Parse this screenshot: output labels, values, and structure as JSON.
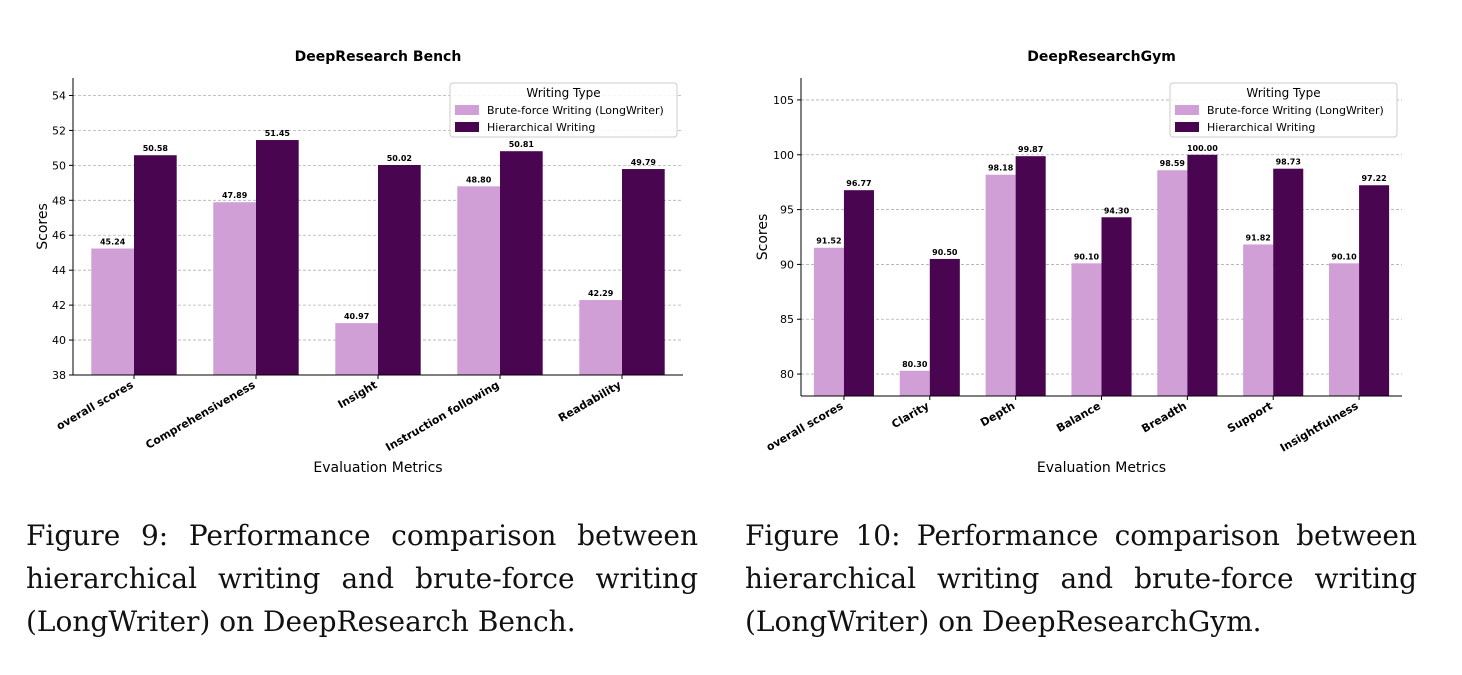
{
  "chart_data": [
    {
      "type": "bar",
      "title": "DeepResearch Bench",
      "xlabel": "Evaluation Metrics",
      "ylabel": "Scores",
      "ylim": [
        38,
        55
      ],
      "yticks": [
        38,
        40,
        42,
        44,
        46,
        48,
        50,
        52,
        54
      ],
      "grid": "y-dashed",
      "legend": {
        "title": "Writing Type",
        "position": "top-right"
      },
      "categories": [
        "overall scores",
        "Comprehensiveness",
        "Insight",
        "Instruction following",
        "Readability"
      ],
      "series": [
        {
          "name": "Brute-force Writing (LongWriter)",
          "color": "#cf9fd6",
          "values": [
            45.24,
            47.89,
            40.97,
            48.8,
            42.29
          ],
          "labels": [
            "45.24",
            "47.89",
            "40.97",
            "48.80",
            "42.29"
          ]
        },
        {
          "name": "Hierarchical Writing",
          "color": "#4a0550",
          "values": [
            50.58,
            51.45,
            50.02,
            50.81,
            49.79
          ],
          "labels": [
            "50.58",
            "51.45",
            "50.02",
            "50.81",
            "49.79"
          ]
        }
      ]
    },
    {
      "type": "bar",
      "title": "DeepResearchGym",
      "xlabel": "Evaluation Metrics",
      "ylabel": "Scores",
      "ylim": [
        78,
        107
      ],
      "yticks": [
        80,
        85,
        90,
        95,
        100,
        105
      ],
      "grid": "y-dashed",
      "legend": {
        "title": "Writing Type",
        "position": "top-right"
      },
      "categories": [
        "overall scores",
        "Clarity",
        "Depth",
        "Balance",
        "Breadth",
        "Support",
        "Insightfulness"
      ],
      "series": [
        {
          "name": "Brute-force Writing (LongWriter)",
          "color": "#cf9fd6",
          "values": [
            91.52,
            80.3,
            98.18,
            90.1,
            98.59,
            91.82,
            90.1
          ],
          "labels": [
            "91.52",
            "80.30",
            "98.18",
            "90.10",
            "98.59",
            "91.82",
            "90.10"
          ]
        },
        {
          "name": "Hierarchical Writing",
          "color": "#4a0550",
          "values": [
            96.77,
            90.5,
            99.87,
            94.3,
            100.0,
            98.73,
            97.22
          ],
          "labels": [
            "96.77",
            "90.50",
            "99.87",
            "94.30",
            "100.00",
            "98.73",
            "97.22"
          ]
        }
      ]
    }
  ],
  "captions": {
    "left": "Figure 9: Performance comparison between hierar­chical writing and brute-force writing (LongWriter) on DeepResearch Bench.",
    "right": "Figure 10: Performance comparison between hi­erarchical writing and brute-force writing (Long­Writer) on DeepResearchGym."
  }
}
